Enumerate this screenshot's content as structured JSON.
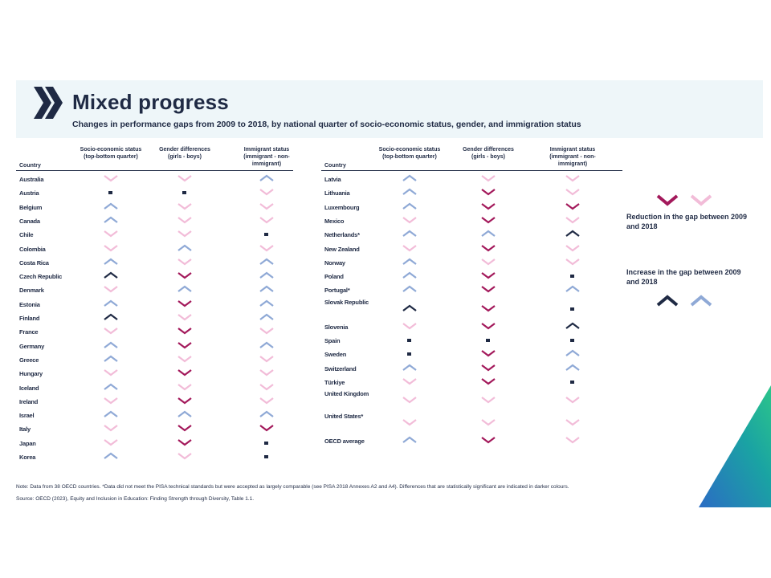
{
  "title": "Mixed progress",
  "subtitle": "Changes in performance gaps from 2009 to 2018, by national quarter of socio-economic status, gender, and immigration status",
  "table_left": {
    "country_header": "Country",
    "col1_header": "Socio-economic status (top-bottom quarter)",
    "col2_header": "Gender differences (girls - boys)",
    "col3_header": "Immigrant status (immigrant - non-immigrant)",
    "rows": [
      {
        "country": "Australia",
        "c": [
          "dl",
          "dl",
          "ul"
        ]
      },
      {
        "country": "Austria",
        "c": [
          "m",
          "m",
          "dl"
        ]
      },
      {
        "country": "Belgium",
        "c": [
          "ul",
          "dl",
          "dl"
        ]
      },
      {
        "country": "Canada",
        "c": [
          "ul",
          "dl",
          "dl"
        ]
      },
      {
        "country": "Chile",
        "c": [
          "dl",
          "dl",
          "m"
        ]
      },
      {
        "country": "Colombia",
        "c": [
          "dl",
          "ul",
          "dl"
        ]
      },
      {
        "country": "Costa Rica",
        "c": [
          "ul",
          "dl",
          "ul"
        ]
      },
      {
        "country": "Czech Republic",
        "c": [
          "ud",
          "dd",
          "ul"
        ]
      },
      {
        "country": "Denmark",
        "c": [
          "dl",
          "ul",
          "ul"
        ]
      },
      {
        "country": "Estonia",
        "c": [
          "ul",
          "dd",
          "ul"
        ]
      },
      {
        "country": "Finland",
        "c": [
          "ud",
          "dl",
          "ul"
        ]
      },
      {
        "country": "France",
        "c": [
          "dl",
          "dd",
          "dl"
        ]
      },
      {
        "country": "Germany",
        "c": [
          "ul",
          "dd",
          "ul"
        ]
      },
      {
        "country": "Greece",
        "c": [
          "ul",
          "dl",
          "dl"
        ]
      },
      {
        "country": "Hungary",
        "c": [
          "dl",
          "dd",
          "dl"
        ]
      },
      {
        "country": "Iceland",
        "c": [
          "ul",
          "dl",
          "dl"
        ]
      },
      {
        "country": "Ireland",
        "c": [
          "dl",
          "dd",
          "dl"
        ]
      },
      {
        "country": "Israel",
        "c": [
          "ul",
          "ul",
          "ul"
        ]
      },
      {
        "country": "Italy",
        "c": [
          "dl",
          "dd",
          "dd"
        ]
      },
      {
        "country": "Japan",
        "c": [
          "dl",
          "dd",
          "m"
        ]
      },
      {
        "country": "Korea",
        "c": [
          "ul",
          "dl",
          "m"
        ]
      }
    ]
  },
  "table_right": {
    "country_header": "Country",
    "col1_header": "Socio-economic status (top-bottom quarter)",
    "col2_header": "Gender differences (girls - boys)",
    "col3_header": "Immigrant status (immigrant - non-immigrant)",
    "rows": [
      {
        "country": "Latvia",
        "c": [
          "ul",
          "dl",
          "dl"
        ]
      },
      {
        "country": "Lithuania",
        "c": [
          "ul",
          "dd",
          "dl"
        ]
      },
      {
        "country": "Luxembourg",
        "c": [
          "ul",
          "dd",
          "dd"
        ]
      },
      {
        "country": "Mexico",
        "c": [
          "dl",
          "dd",
          "dl"
        ]
      },
      {
        "country": "Netherlands*",
        "c": [
          "ul",
          "ul",
          "ud"
        ]
      },
      {
        "country": "New Zealand",
        "c": [
          "dl",
          "dd",
          "dl"
        ]
      },
      {
        "country": "Norway",
        "c": [
          "ul",
          "dl",
          "dl"
        ]
      },
      {
        "country": "Poland",
        "c": [
          "ul",
          "dd",
          "m"
        ]
      },
      {
        "country": "Portugal*",
        "c": [
          "ul",
          "dd",
          "ul"
        ]
      },
      {
        "country": "Slovak Republic",
        "c": [
          "ud",
          "dd",
          "m"
        ]
      },
      {
        "country": "Slovenia",
        "c": [
          "dl",
          "dd",
          "ud"
        ]
      },
      {
        "country": "Spain",
        "c": [
          "m",
          "m",
          "m"
        ]
      },
      {
        "country": "Sweden",
        "c": [
          "m",
          "dd",
          "ul"
        ]
      },
      {
        "country": "Switzerland",
        "c": [
          "ul",
          "dd",
          "ul"
        ]
      },
      {
        "country": "Türkiye",
        "c": [
          "dl",
          "dd",
          "m"
        ]
      },
      {
        "country": "United Kingdom",
        "c": [
          "dl",
          "dl",
          "dl"
        ]
      },
      {
        "country": "United States*",
        "c": [
          "dl",
          "dl",
          "dl"
        ]
      },
      {
        "country": "OECD average",
        "c": [
          "ul",
          "dd",
          "dl"
        ]
      }
    ]
  },
  "legend": {
    "reduction_label": "Reduction in the gap between 2009 and 2018",
    "increase_label": "Increase in the gap between 2009 and 2018"
  },
  "note": "Note: Data from 38 OECD countries. *Data did not meet the PISA technical standards but were accepted as largely comparable (see PISA 2018 Annexes A2 and A4). Differences that are statistically significant are indicated in darker colours.",
  "source": "Source: OECD (2023), Equity and Inclusion in Education: Finding Strength through Diversity, Table 1.1.",
  "colors": {
    "dark_navy": "#1f2a44",
    "dark_magenta": "#a3195b",
    "light_pink": "#f2bcd8",
    "light_blue": "#8fa9d6",
    "header_bg": "#eef6f9"
  }
}
